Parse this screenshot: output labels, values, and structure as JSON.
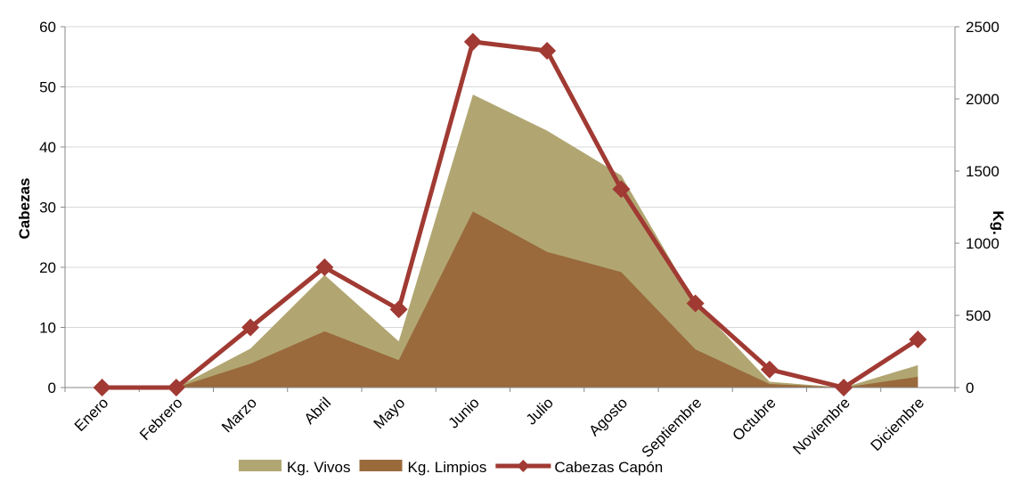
{
  "chart_data": {
    "type": "area",
    "categories": [
      "Enero",
      "Febrero",
      "Marzo",
      "Abril",
      "Mayo",
      "Junio",
      "Julio",
      "Agosto",
      "Septiembre",
      "Octubre",
      "Noviembre",
      "Diciembre"
    ],
    "ylabel": "Cabezas",
    "ylabel_right": "Kg.",
    "ylim": [
      0,
      60
    ],
    "ylim_right": [
      0,
      2500
    ],
    "yticks": [
      "0",
      "10",
      "20",
      "30",
      "40",
      "50",
      "60"
    ],
    "yticks_right": [
      "0",
      "500",
      "1000",
      "1500",
      "2000",
      "2500"
    ],
    "grid": true,
    "legend_position": "bottom",
    "series": [
      {
        "name": "Kg. Vivos",
        "type": "area",
        "axis": "right",
        "color": "#b1a672",
        "values": [
          0,
          0,
          270,
          780,
          320,
          2030,
          1780,
          1470,
          590,
          40,
          0,
          155
        ]
      },
      {
        "name": "Kg. Limpios",
        "type": "area",
        "axis": "right",
        "color": "#9a6a3c",
        "values": [
          0,
          0,
          165,
          390,
          190,
          1220,
          940,
          800,
          265,
          25,
          0,
          75
        ]
      },
      {
        "name": "Cabezas Capón",
        "type": "line",
        "axis": "left",
        "color": "#a03a33",
        "values": [
          0,
          0,
          10,
          20,
          13,
          57.5,
          56,
          33,
          14,
          3,
          0,
          8
        ]
      }
    ]
  }
}
